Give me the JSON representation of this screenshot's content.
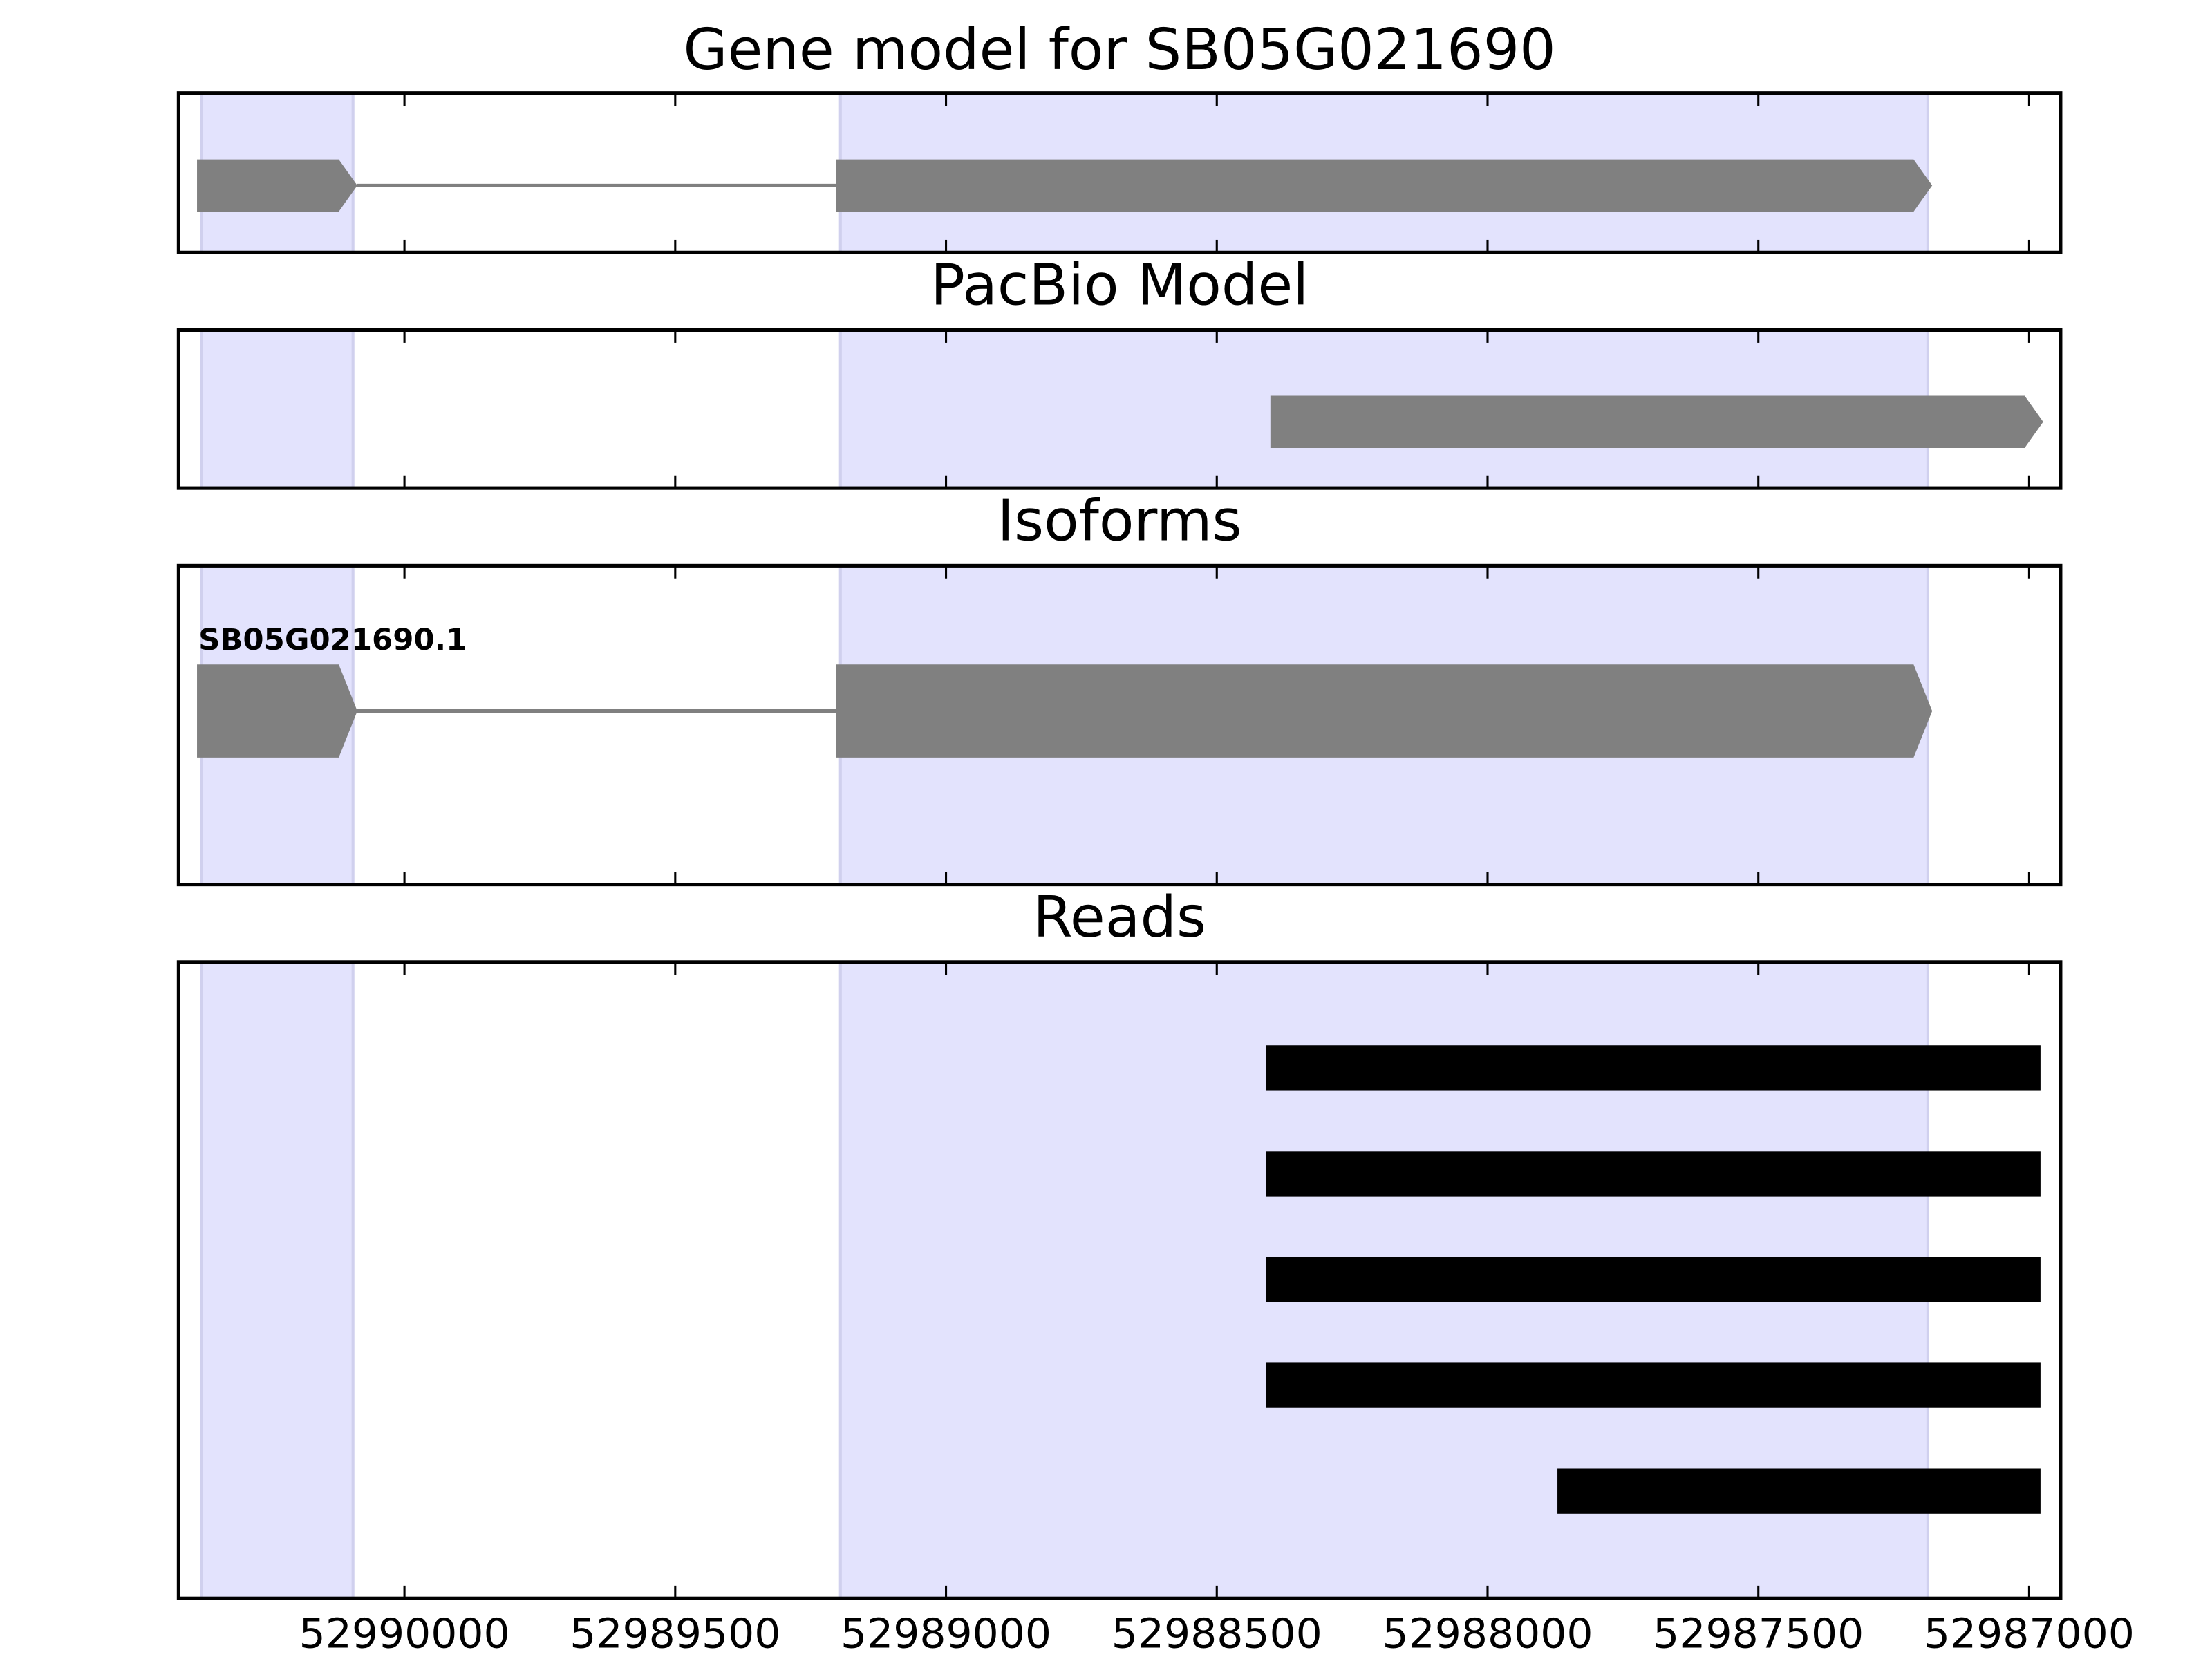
{
  "chart_data": [
    {
      "type": "gene",
      "title": "Gene model for SB05G021690",
      "xlim": [
        52990417,
        52986942
      ],
      "highlights": [
        [
          52990375,
          52990095
        ],
        [
          52989195,
          52987187
        ]
      ],
      "exons": [
        [
          52990383,
          52990087
        ],
        [
          52989203,
          52987179
        ]
      ],
      "color": "#808080"
    },
    {
      "type": "gene",
      "title": "PacBio Model",
      "xlim": [
        52990417,
        52986942
      ],
      "highlights": [
        [
          52990375,
          52990095
        ],
        [
          52989195,
          52987187
        ]
      ],
      "exons": [
        [
          52988401,
          52986974
        ]
      ],
      "color": "#808080"
    },
    {
      "type": "gene",
      "title": "Isoforms",
      "label": "SB05G021690.1",
      "xlim": [
        52990417,
        52986942
      ],
      "highlights": [
        [
          52990375,
          52990095
        ],
        [
          52989195,
          52987187
        ]
      ],
      "exons": [
        [
          52990383,
          52990087
        ],
        [
          52989203,
          52987179
        ]
      ],
      "color": "#808080"
    },
    {
      "type": "reads",
      "title": "Reads",
      "xlim": [
        52990417,
        52986942
      ],
      "xticks": [
        52990000,
        52989500,
        52989000,
        52988500,
        52988000,
        52987500,
        52987000
      ],
      "highlights": [
        [
          52990375,
          52990095
        ],
        [
          52989195,
          52987187
        ]
      ],
      "reads": [
        [
          52988409,
          52986979
        ],
        [
          52988409,
          52986979
        ],
        [
          52988409,
          52986979
        ],
        [
          52988409,
          52986979
        ],
        [
          52987871,
          52986979
        ]
      ],
      "color": "#000000"
    }
  ]
}
